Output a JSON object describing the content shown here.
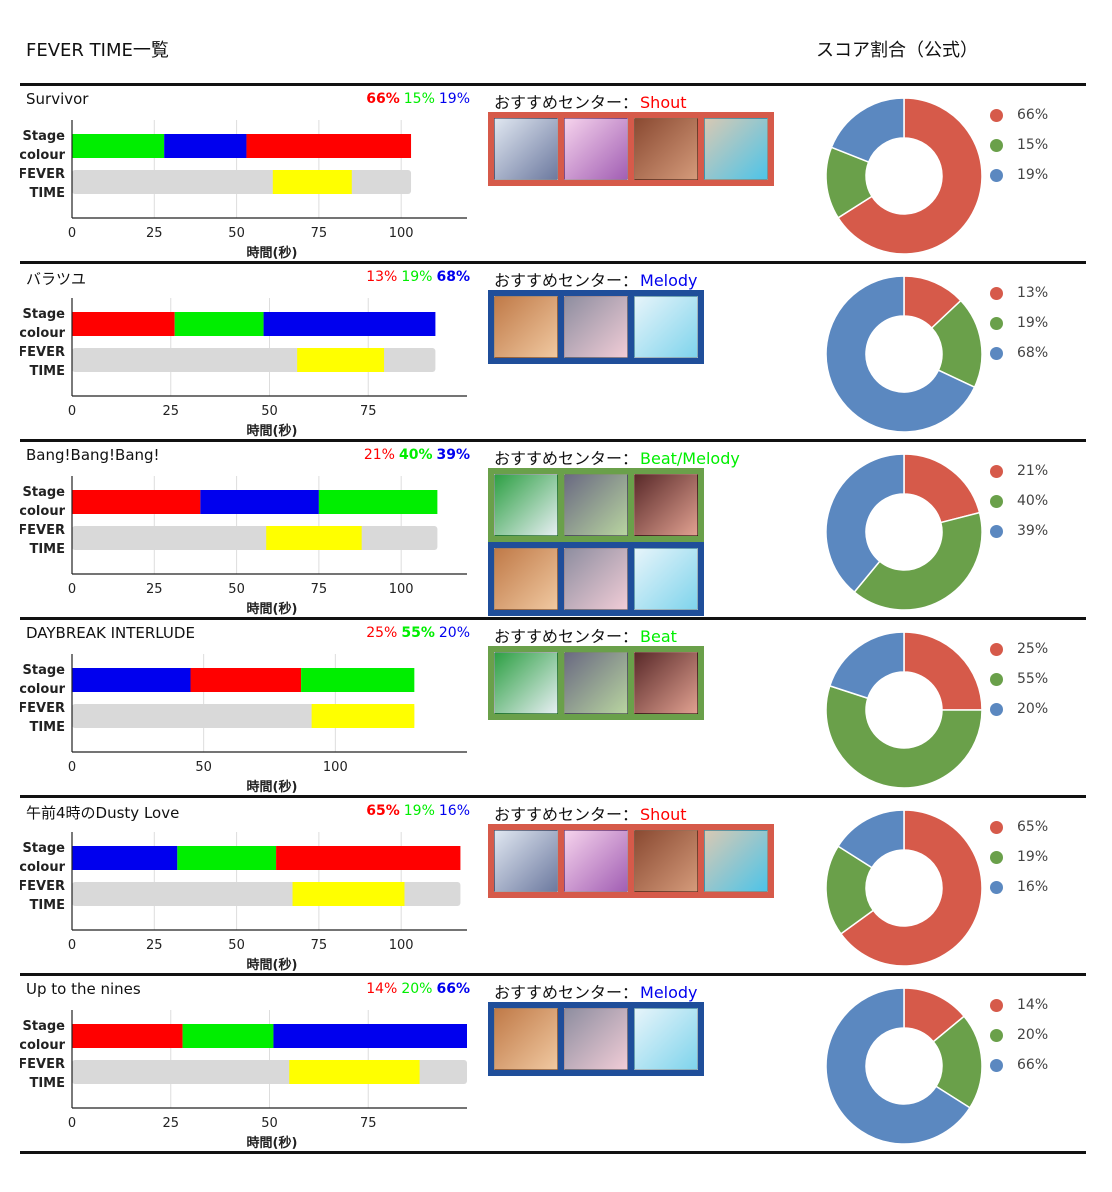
{
  "header": {
    "title": "FEVER TIME一覧",
    "pie_title": "スコア割合（公式）"
  },
  "labels": {
    "stage": "Stage",
    "colour": "colour",
    "fever": "FEVER",
    "time": "TIME",
    "xlabel": "時間(秒)",
    "center_prefix": "おすすめセンター："
  },
  "colors": {
    "shout": "#ff0000",
    "beat": "#00ee00",
    "melody": "#0000ee",
    "fever": "#ffff00",
    "track": "#d9d9d9",
    "pie_shout": "#d65a4a",
    "pie_beat": "#6aa04a",
    "pie_melody": "#5b88c0",
    "frame_shout": "#d65a4a",
    "frame_beat": "#6aa04a",
    "frame_melody": "#1f4e9a"
  },
  "chart_data": [
    {
      "type": "bar",
      "song": "Survivor",
      "xlim": [
        0,
        120
      ],
      "ticks": [
        0,
        25,
        50,
        75,
        100
      ],
      "duration": 103,
      "segments": [
        {
          "type": "beat",
          "start": 0,
          "end": 28
        },
        {
          "type": "melody",
          "start": 28,
          "end": 53
        },
        {
          "type": "shout",
          "start": 53,
          "end": 103
        }
      ],
      "fever": [
        61,
        85
      ],
      "percent_labels": [
        {
          "type": "shout",
          "text": "66%",
          "dominant": true
        },
        {
          "type": "beat",
          "text": "15%",
          "dominant": false
        },
        {
          "type": "melody",
          "text": "19%",
          "dominant": false
        }
      ],
      "pie": [
        {
          "type": "shout",
          "value": 66,
          "label": "66%"
        },
        {
          "type": "beat",
          "value": 15,
          "label": "15%"
        },
        {
          "type": "melody",
          "value": 19,
          "label": "19%"
        }
      ],
      "center": "Shout",
      "center_type": "shout",
      "card_groups": [
        {
          "frame": "shout",
          "cards": [
            {
              "colors": [
                "#dfe6f0",
                "#6d7aa0"
              ]
            },
            {
              "colors": [
                "#f5d2ec",
                "#a25fb4"
              ]
            },
            {
              "colors": [
                "#8a4a32",
                "#d49a7a"
              ]
            },
            {
              "colors": [
                "#d7c9b4",
                "#4ec4e8"
              ]
            }
          ]
        }
      ]
    },
    {
      "type": "bar",
      "song": "バラツユ",
      "xlim": [
        0,
        100
      ],
      "ticks": [
        0,
        25,
        50,
        75
      ],
      "duration": 92,
      "segments": [
        {
          "type": "shout",
          "start": 0,
          "end": 26
        },
        {
          "type": "beat",
          "start": 26,
          "end": 48.5
        },
        {
          "type": "melody",
          "start": 48.5,
          "end": 92
        }
      ],
      "fever": [
        57,
        79
      ],
      "percent_labels": [
        {
          "type": "shout",
          "text": "13%",
          "dominant": false
        },
        {
          "type": "beat",
          "text": "19%",
          "dominant": false
        },
        {
          "type": "melody",
          "text": "68%",
          "dominant": true
        }
      ],
      "pie": [
        {
          "type": "shout",
          "value": 13,
          "label": "13%"
        },
        {
          "type": "beat",
          "value": 19,
          "label": "19%"
        },
        {
          "type": "melody",
          "value": 68,
          "label": "68%"
        }
      ],
      "center": "Melody",
      "center_type": "melody",
      "card_groups": [
        {
          "frame": "melody",
          "cards": [
            {
              "colors": [
                "#c07a48",
                "#f0c8a0"
              ]
            },
            {
              "colors": [
                "#8e8ea0",
                "#f0ccd6"
              ]
            },
            {
              "colors": [
                "#e6f4fa",
                "#7fd4ec"
              ]
            }
          ]
        }
      ]
    },
    {
      "type": "bar",
      "song": "Bang!Bang!Bang!",
      "xlim": [
        0,
        120
      ],
      "ticks": [
        0,
        25,
        50,
        75,
        100
      ],
      "duration": 111,
      "segments": [
        {
          "type": "shout",
          "start": 0,
          "end": 39
        },
        {
          "type": "melody",
          "start": 39,
          "end": 75
        },
        {
          "type": "beat",
          "start": 75,
          "end": 111
        }
      ],
      "fever": [
        59,
        88
      ],
      "percent_labels": [
        {
          "type": "shout",
          "text": "21%",
          "dominant": false
        },
        {
          "type": "beat",
          "text": "40%",
          "dominant": true
        },
        {
          "type": "melody",
          "text": "39%",
          "dominant": true
        }
      ],
      "pie": [
        {
          "type": "shout",
          "value": 21,
          "label": "21%"
        },
        {
          "type": "beat",
          "value": 40,
          "label": "40%"
        },
        {
          "type": "melody",
          "value": 39,
          "label": "39%"
        }
      ],
      "center": "Beat/Melody",
      "center_type": "beat",
      "card_groups": [
        {
          "frame": "beat",
          "cards": [
            {
              "colors": [
                "#2ea044",
                "#e6eef2"
              ]
            },
            {
              "colors": [
                "#6a6a82",
                "#b8d4a0"
              ]
            },
            {
              "colors": [
                "#5a2a2a",
                "#e0a090"
              ]
            }
          ]
        },
        {
          "frame": "melody",
          "cards": [
            {
              "colors": [
                "#c07a48",
                "#f0c8a0"
              ]
            },
            {
              "colors": [
                "#8e8ea0",
                "#f0ccd6"
              ]
            },
            {
              "colors": [
                "#e6f4fa",
                "#7fd4ec"
              ]
            }
          ]
        }
      ]
    },
    {
      "type": "bar",
      "song": "DAYBREAK INTERLUDE",
      "xlim": [
        0,
        150
      ],
      "ticks": [
        0,
        50,
        100
      ],
      "duration": 130,
      "segments": [
        {
          "type": "melody",
          "start": 0,
          "end": 45
        },
        {
          "type": "shout",
          "start": 45,
          "end": 87
        },
        {
          "type": "beat",
          "start": 87,
          "end": 130
        }
      ],
      "fever": [
        91,
        130
      ],
      "percent_labels": [
        {
          "type": "shout",
          "text": "25%",
          "dominant": false
        },
        {
          "type": "beat",
          "text": "55%",
          "dominant": true
        },
        {
          "type": "melody",
          "text": "20%",
          "dominant": false
        }
      ],
      "pie": [
        {
          "type": "shout",
          "value": 25,
          "label": "25%"
        },
        {
          "type": "beat",
          "value": 55,
          "label": "55%"
        },
        {
          "type": "melody",
          "value": 20,
          "label": "20%"
        }
      ],
      "center": "Beat",
      "center_type": "beat",
      "card_groups": [
        {
          "frame": "beat",
          "cards": [
            {
              "colors": [
                "#2ea044",
                "#e6eef2"
              ]
            },
            {
              "colors": [
                "#6a6a82",
                "#b8d4a0"
              ]
            },
            {
              "colors": [
                "#5a2a2a",
                "#e0a090"
              ]
            }
          ]
        }
      ]
    },
    {
      "type": "bar",
      "song": "午前4時のDusty Love",
      "xlim": [
        0,
        120
      ],
      "ticks": [
        0,
        25,
        50,
        75,
        100
      ],
      "duration": 118,
      "segments": [
        {
          "type": "melody",
          "start": 0,
          "end": 32
        },
        {
          "type": "beat",
          "start": 32,
          "end": 62
        },
        {
          "type": "shout",
          "start": 62,
          "end": 118
        }
      ],
      "fever": [
        67,
        101
      ],
      "percent_labels": [
        {
          "type": "shout",
          "text": "65%",
          "dominant": true
        },
        {
          "type": "beat",
          "text": "19%",
          "dominant": false
        },
        {
          "type": "melody",
          "text": "16%",
          "dominant": false
        }
      ],
      "pie": [
        {
          "type": "shout",
          "value": 65,
          "label": "65%"
        },
        {
          "type": "beat",
          "value": 19,
          "label": "19%"
        },
        {
          "type": "melody",
          "value": 16,
          "label": "16%"
        }
      ],
      "center": "Shout",
      "center_type": "shout",
      "card_groups": [
        {
          "frame": "shout",
          "cards": [
            {
              "colors": [
                "#dfe6f0",
                "#6d7aa0"
              ]
            },
            {
              "colors": [
                "#f5d2ec",
                "#a25fb4"
              ]
            },
            {
              "colors": [
                "#8a4a32",
                "#d49a7a"
              ]
            },
            {
              "colors": [
                "#d7c9b4",
                "#4ec4e8"
              ]
            }
          ]
        }
      ]
    },
    {
      "type": "bar",
      "song": "Up to the nines",
      "xlim": [
        0,
        100
      ],
      "ticks": [
        0,
        25,
        50,
        75
      ],
      "duration": 100,
      "segments": [
        {
          "type": "shout",
          "start": 0,
          "end": 28
        },
        {
          "type": "beat",
          "start": 28,
          "end": 51
        },
        {
          "type": "melody",
          "start": 51,
          "end": 100
        }
      ],
      "fever": [
        55,
        88
      ],
      "percent_labels": [
        {
          "type": "shout",
          "text": "14%",
          "dominant": false
        },
        {
          "type": "beat",
          "text": "20%",
          "dominant": false
        },
        {
          "type": "melody",
          "text": "66%",
          "dominant": true
        }
      ],
      "pie": [
        {
          "type": "shout",
          "value": 14,
          "label": "14%"
        },
        {
          "type": "beat",
          "value": 20,
          "label": "20%"
        },
        {
          "type": "melody",
          "value": 66,
          "label": "66%"
        }
      ],
      "center": "Melody",
      "center_type": "melody",
      "card_groups": [
        {
          "frame": "melody",
          "cards": [
            {
              "colors": [
                "#c07a48",
                "#f0c8a0"
              ]
            },
            {
              "colors": [
                "#8e8ea0",
                "#f0ccd6"
              ]
            },
            {
              "colors": [
                "#e6f4fa",
                "#7fd4ec"
              ]
            }
          ]
        }
      ]
    }
  ]
}
